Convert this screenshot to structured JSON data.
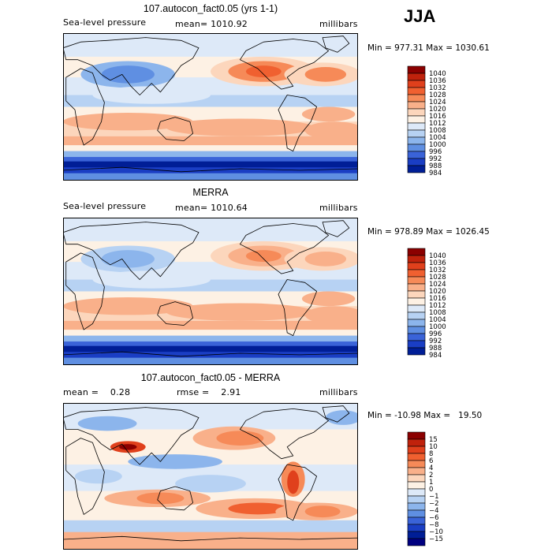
{
  "season": "JJA",
  "chart_data": [
    {
      "type": "heatmap",
      "title": "107.autocon_fact0.05 (yrs 1-1)",
      "variable": "Sea-level pressure",
      "mean_text": "mean= 1010.92",
      "units": "millibars",
      "minmax_text": "Min = 977.31 Max = 1030.61",
      "min": 977.31,
      "max": 1030.61,
      "mean": 1010.92,
      "colorbar_levels": [
        "1040",
        "1036",
        "1032",
        "1028",
        "1024",
        "1020",
        "1016",
        "1012",
        "1008",
        "1004",
        "1000",
        "996",
        "992",
        "988",
        "984"
      ],
      "colorbar_colors": [
        "#8b0000",
        "#c0220c",
        "#e0401c",
        "#f06030",
        "#f68a58",
        "#f9b08a",
        "#fcd6bc",
        "#fdf1e4",
        "#dde9f8",
        "#b7d2f3",
        "#8cb5ec",
        "#5f8fe2",
        "#3a63d8",
        "#1a3ec4",
        "#001e96"
      ]
    },
    {
      "type": "heatmap",
      "title": "MERRA",
      "variable": "Sea-level pressure",
      "mean_text": "mean= 1010.64",
      "units": "millibars",
      "minmax_text": "Min = 978.89 Max = 1026.45",
      "min": 978.89,
      "max": 1026.45,
      "mean": 1010.64,
      "colorbar_levels": [
        "1040",
        "1036",
        "1032",
        "1028",
        "1024",
        "1020",
        "1016",
        "1012",
        "1008",
        "1004",
        "1000",
        "996",
        "992",
        "988",
        "984"
      ],
      "colorbar_colors": [
        "#8b0000",
        "#c0220c",
        "#e0401c",
        "#f06030",
        "#f68a58",
        "#f9b08a",
        "#fcd6bc",
        "#fdf1e4",
        "#dde9f8",
        "#b7d2f3",
        "#8cb5ec",
        "#5f8fe2",
        "#3a63d8",
        "#1a3ec4",
        "#001e96"
      ]
    },
    {
      "type": "heatmap",
      "title": "107.autocon_fact0.05 - MERRA",
      "mean_text": "mean =    0.28",
      "rmse_text": "rmse =    2.91",
      "units": "millibars",
      "minmax_text": "Min = -10.98 Max =   19.50",
      "min": -10.98,
      "max": 19.5,
      "mean": 0.28,
      "rmse": 2.91,
      "colorbar_levels": [
        "15",
        "10",
        "8",
        "6",
        "4",
        "2",
        "1",
        "0",
        "−1",
        "−2",
        "−4",
        "−6",
        "−8",
        "−10",
        "−15"
      ],
      "colorbar_colors": [
        "#8b0000",
        "#c0220c",
        "#e0401c",
        "#f06030",
        "#f68a58",
        "#f9b08a",
        "#fcd6bc",
        "#fdf1e4",
        "#dde9f8",
        "#b7d2f3",
        "#8cb5ec",
        "#5f8fe2",
        "#3a63d8",
        "#1a3ec4",
        "#001e96",
        "#000080"
      ]
    }
  ]
}
